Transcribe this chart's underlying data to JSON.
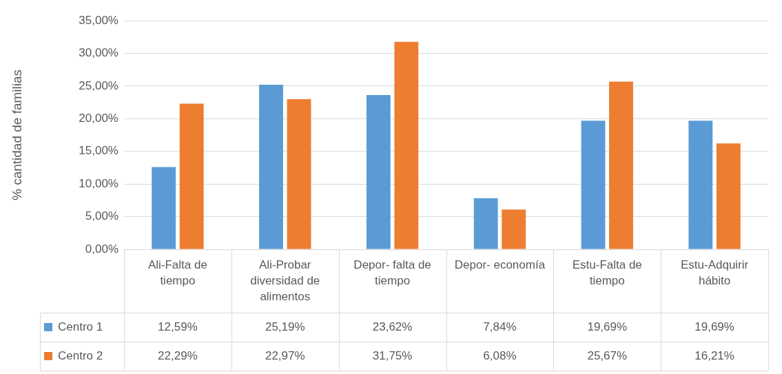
{
  "chart_data": {
    "type": "bar",
    "ylabel": "% cantidad de familias",
    "categories": [
      "Ali-Falta de tiempo",
      "Ali-Probar diversidad de alimentos",
      "Depor- falta de tiempo",
      "Depor- economía",
      "Estu-Falta de tiempo",
      "Estu-Adquirir hábito"
    ],
    "series": [
      {
        "name": "Centro 1",
        "color": "#5b9bd5",
        "values": [
          12.59,
          25.19,
          23.62,
          7.84,
          19.69,
          19.69
        ],
        "value_labels": [
          "12,59%",
          "25,19%",
          "23,62%",
          "7,84%",
          "19,69%",
          "19,69%"
        ]
      },
      {
        "name": "Centro 2",
        "color": "#ed7d31",
        "values": [
          22.29,
          22.97,
          31.75,
          6.08,
          25.67,
          16.21
        ],
        "value_labels": [
          "22,29%",
          "22,97%",
          "31,75%",
          "6,08%",
          "25,67%",
          "16,21%"
        ]
      }
    ],
    "ylim": [
      0,
      35
    ],
    "yticks": [
      {
        "value": 0,
        "label": "0,00%"
      },
      {
        "value": 5,
        "label": "5,00%"
      },
      {
        "value": 10,
        "label": "10,00%"
      },
      {
        "value": 15,
        "label": "15,00%"
      },
      {
        "value": 20,
        "label": "20,00%"
      },
      {
        "value": 25,
        "label": "25,00%"
      },
      {
        "value": 30,
        "label": "30,00%"
      },
      {
        "value": 35,
        "label": "35,00%"
      }
    ],
    "grid": "y",
    "legend": "bottom"
  }
}
